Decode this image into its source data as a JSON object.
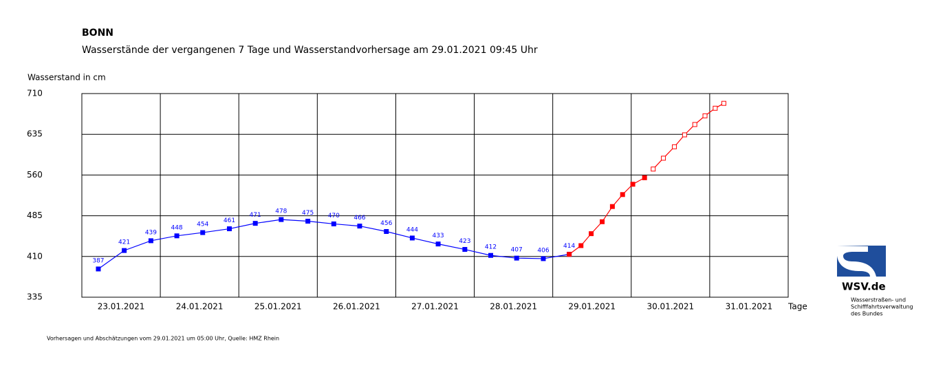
{
  "chart_data": {
    "type": "line",
    "title": "BONN",
    "subtitle": "Wasserstände der vergangenen 7 Tage und Wasserstandvorhersage am 29.01.2021 09:45 Uhr",
    "y_label": "Wasserstand in cm",
    "x_label": "Tage",
    "xlim": [
      0,
      9
    ],
    "xticks": [
      {
        "value": 0,
        "label": "23.01.2021"
      },
      {
        "value": 1,
        "label": "24.01.2021"
      },
      {
        "value": 2,
        "label": "25.01.2021"
      },
      {
        "value": 3,
        "label": "26.01.2021"
      },
      {
        "value": 4,
        "label": "27.01.2021"
      },
      {
        "value": 5,
        "label": "28.01.2021"
      },
      {
        "value": 6,
        "label": "29.01.2021"
      },
      {
        "value": 7,
        "label": "30.01.2021"
      },
      {
        "value": 8,
        "label": "31.01.2021"
      }
    ],
    "ylim": [
      335,
      710
    ],
    "yticks": [
      335,
      410,
      485,
      560,
      635,
      710
    ],
    "grid": true,
    "series": [
      {
        "color": "#0000ff",
        "marker_fill": true,
        "show_labels": true,
        "x": [
          0.21,
          0.54,
          0.88,
          1.21,
          1.54,
          1.88,
          2.21,
          2.54,
          2.88,
          3.21,
          3.54,
          3.88,
          4.21,
          4.54,
          4.88,
          5.21,
          5.54,
          5.88,
          6.21
        ],
        "values": [
          387,
          421,
          439,
          448,
          454,
          461,
          471,
          478,
          475,
          470,
          466,
          456,
          444,
          433,
          423,
          412,
          407,
          406,
          414
        ]
      },
      {
        "color": "#ff0000",
        "marker_fill": true,
        "show_labels": false,
        "x": [
          6.21,
          6.36,
          6.49,
          6.63,
          6.76,
          6.89,
          7.02,
          7.17
        ],
        "values": [
          414,
          430,
          452,
          474,
          502,
          524,
          543,
          555
        ]
      },
      {
        "color": "#ff0000",
        "marker_fill": false,
        "show_labels": false,
        "x": [
          7.28,
          7.41,
          7.55,
          7.68,
          7.81,
          7.94,
          8.07,
          8.18
        ],
        "values": [
          571,
          591,
          612,
          634,
          653,
          669,
          683,
          692
        ]
      }
    ]
  },
  "footnote": "Vorhersagen und Abschätzungen vom 29.01.2021 um 05:00 Uhr, Quelle: HMZ Rhein",
  "logo": {
    "name": "WSV.de",
    "lines": [
      "Wasserstraßen- und",
      "Schifffahrtsverwaltung",
      "des Bundes"
    ]
  }
}
